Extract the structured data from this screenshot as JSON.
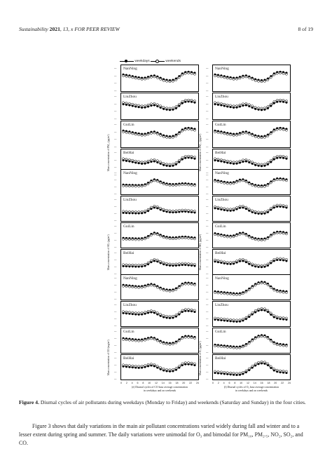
{
  "header": {
    "journal": "Sustainability",
    "year": "2021",
    "volume": "13",
    "rest": ", x FOR PEER REVIEW",
    "page": "8 of 19"
  },
  "figure": {
    "legend": {
      "weekdays": "weekdays",
      "weekends": "weekends"
    },
    "x_ticks": [
      "0",
      "2",
      "4",
      "6",
      "8",
      "10",
      "12",
      "14",
      "16",
      "18",
      "20",
      "22",
      "24"
    ],
    "cities": [
      "NanNing",
      "LiuZhou",
      "GuiLin",
      "BeiHai"
    ],
    "panels": [
      {
        "id": "a",
        "caption_l1": "(a) Diurnal cycles of PM₁₀ hour average concentration",
        "caption_l2": "in weekdays and on weekends",
        "ylabel": "Mass concentration of PM₁₀ (μg/m³)"
      },
      {
        "id": "b",
        "caption_l1": "(b) Diurnal cycles of PM₂.₅ hour average concentration",
        "caption_l2": "in weekdays and on weekends",
        "ylabel": "Mass concentration of PM₂.₅ (μg/m³)"
      },
      {
        "id": "c",
        "caption_l1": "(c) Diurnal cycles of SO₂ hour average concentration",
        "caption_l2": "in weekdays and on weekends",
        "ylabel": "Mass concentration of SO₂ (μg/m³)"
      },
      {
        "id": "d",
        "caption_l1": "(d) Diurnal cycles of NO₂ hour average concentration",
        "caption_l2": "in weekdays and on weekends",
        "ylabel": "Mass concentration of NO₂ (μg/m³)"
      },
      {
        "id": "e",
        "caption_l1": "(e) Diurnal cycles of CO hour average concentration",
        "caption_l2": "in weekdays and on weekends",
        "ylabel": "Mass concentration of CO (mg/m³)"
      },
      {
        "id": "f",
        "caption_l1": "(f) Diurnal cycles of O₃ hour average concentration",
        "caption_l2": "in weekdays and on weekends",
        "ylabel": "Mass concentration of O₃ (μg/m³)"
      }
    ]
  },
  "caption": {
    "label": "Figure 4.",
    "text": " Diurnal cycles of air pollutants during weekdays (Monday to Friday) and weekends (Saturday and Sunday) in the four cities."
  },
  "paragraph": "Figure 3 shows that daily variations in the main air pollutant concentrations varied widely during fall and winter and to a lesser extent during spring and summer. The daily variations were unimodal for O₃ and bimodal for PM₁₀, PM₂.₅, NO₂, SO₂, and CO.",
  "chart_data": [
    {
      "type": "line",
      "title": "PM10",
      "x": [
        0,
        1,
        2,
        3,
        4,
        5,
        6,
        7,
        8,
        9,
        10,
        11,
        12,
        13,
        14,
        15,
        16,
        17,
        18,
        19,
        20,
        21,
        22,
        23
      ],
      "series_by_city": {
        "NanNing": {
          "weekdays": [
            108,
            106,
            104,
            102,
            100,
            98,
            96,
            97,
            100,
            103,
            104,
            100,
            96,
            92,
            90,
            89,
            90,
            94,
            102,
            110,
            114,
            115,
            114,
            112
          ],
          "weekends": [
            104,
            102,
            100,
            98,
            96,
            95,
            94,
            94,
            95,
            97,
            97,
            95,
            92,
            89,
            87,
            86,
            87,
            90,
            96,
            103,
            107,
            108,
            108,
            106
          ]
        },
        "LiuZhou": {
          "weekdays": [
            96,
            95,
            93,
            91,
            89,
            88,
            87,
            88,
            92,
            96,
            98,
            95,
            90,
            86,
            84,
            83,
            84,
            88,
            96,
            104,
            108,
            108,
            106,
            104
          ],
          "weekends": [
            100,
            99,
            97,
            95,
            93,
            92,
            90,
            91,
            94,
            98,
            100,
            97,
            92,
            88,
            86,
            85,
            86,
            90,
            98,
            106,
            110,
            110,
            109,
            107
          ]
        },
        "GuiLin": {
          "weekdays": [
            90,
            89,
            88,
            86,
            84,
            83,
            82,
            83,
            86,
            89,
            90,
            88,
            85,
            82,
            80,
            79,
            80,
            83,
            88,
            93,
            95,
            95,
            94,
            92
          ],
          "weekends": [
            86,
            85,
            84,
            82,
            80,
            79,
            78,
            79,
            81,
            84,
            85,
            83,
            80,
            78,
            76,
            75,
            76,
            79,
            84,
            88,
            90,
            90,
            89,
            88
          ]
        },
        "BeiHai": {
          "weekdays": [
            40,
            40,
            39,
            39,
            38,
            38,
            38,
            39,
            40,
            41,
            42,
            42,
            41,
            41,
            40,
            40,
            40,
            41,
            42,
            43,
            43,
            43,
            42,
            41
          ],
          "weekends": [
            41,
            41,
            40,
            40,
            39,
            39,
            39,
            40,
            41,
            42,
            43,
            44,
            45,
            44,
            42,
            41,
            41,
            42,
            43,
            44,
            44,
            44,
            43,
            42
          ]
        }
      }
    },
    {
      "type": "line",
      "title": "PM2.5"
    },
    {
      "type": "line",
      "title": "SO2"
    },
    {
      "type": "line",
      "title": "NO2"
    },
    {
      "type": "line",
      "title": "CO"
    },
    {
      "type": "line",
      "title": "O3"
    }
  ]
}
